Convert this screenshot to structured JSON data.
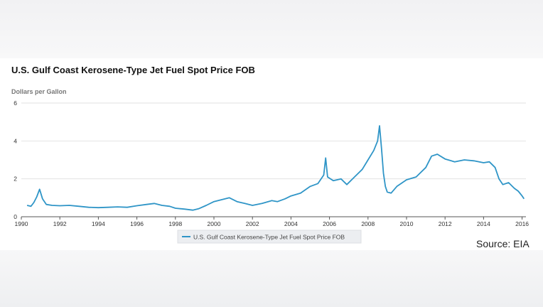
{
  "chart_data": {
    "type": "line",
    "title": "U.S. Gulf Coast Kerosene-Type Jet Fuel Spot Price FOB",
    "ylabel": "Dollars per Gallon",
    "xlabel": "",
    "xlim": [
      1990,
      2016.2
    ],
    "ylim": [
      0,
      6
    ],
    "x_ticks": [
      "1990",
      "1992",
      "1994",
      "1996",
      "1998",
      "2000",
      "2002",
      "2004",
      "2006",
      "2008",
      "2010",
      "2012",
      "2014",
      "2016"
    ],
    "y_ticks": [
      "0",
      "2",
      "4",
      "6"
    ],
    "grid": "horizontal",
    "legend_position": "bottom-center",
    "color": "#2f95c7",
    "series": [
      {
        "name": "U.S. Gulf Coast Kerosene-Type Jet Fuel Spot Price FOB",
        "x": [
          1990.3,
          1990.5,
          1990.65,
          1990.8,
          1990.95,
          1991.1,
          1991.3,
          1991.6,
          1992,
          1992.5,
          1993,
          1993.5,
          1994,
          1994.5,
          1995,
          1995.5,
          1996,
          1996.5,
          1996.9,
          1997.3,
          1997.7,
          1998,
          1998.5,
          1998.9,
          1999.2,
          1999.6,
          2000,
          2000.4,
          2000.8,
          2001.2,
          2001.6,
          2002,
          2002.5,
          2003,
          2003.3,
          2003.7,
          2004,
          2004.5,
          2005,
          2005.4,
          2005.7,
          2005.8,
          2005.9,
          2006.2,
          2006.6,
          2006.9,
          2007.3,
          2007.7,
          2008,
          2008.3,
          2008.5,
          2008.6,
          2008.7,
          2008.8,
          2008.9,
          2009.0,
          2009.2,
          2009.5,
          2010,
          2010.5,
          2011,
          2011.3,
          2011.6,
          2012,
          2012.5,
          2013,
          2013.5,
          2014,
          2014.3,
          2014.6,
          2014.8,
          2015,
          2015.3,
          2015.6,
          2015.8,
          2016.0,
          2016.1
        ],
        "y": [
          0.6,
          0.55,
          0.75,
          1.05,
          1.45,
          0.95,
          0.65,
          0.6,
          0.58,
          0.6,
          0.55,
          0.5,
          0.48,
          0.5,
          0.52,
          0.5,
          0.58,
          0.65,
          0.7,
          0.6,
          0.55,
          0.45,
          0.4,
          0.35,
          0.42,
          0.6,
          0.8,
          0.9,
          1.0,
          0.8,
          0.7,
          0.6,
          0.7,
          0.85,
          0.8,
          0.95,
          1.1,
          1.25,
          1.6,
          1.75,
          2.2,
          3.1,
          2.1,
          1.9,
          2.0,
          1.7,
          2.1,
          2.5,
          3.0,
          3.5,
          4.0,
          4.8,
          3.6,
          2.3,
          1.6,
          1.3,
          1.25,
          1.6,
          1.95,
          2.1,
          2.6,
          3.2,
          3.3,
          3.05,
          2.9,
          3.0,
          2.95,
          2.85,
          2.9,
          2.6,
          2.0,
          1.7,
          1.8,
          1.5,
          1.35,
          1.1,
          0.95
        ]
      }
    ]
  },
  "source": "Source:  EIA"
}
